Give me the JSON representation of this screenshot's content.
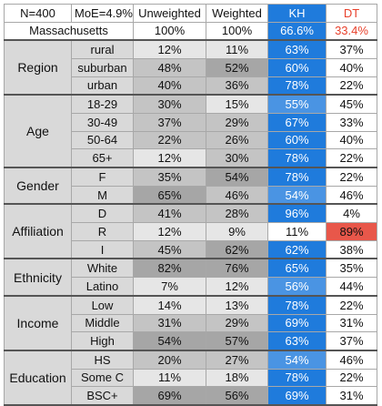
{
  "header": {
    "n": "N=400",
    "moe": "MoE=4.9%",
    "state": "Massachusetts",
    "col_unweighted": "Unweighted",
    "col_weighted": "Weighted",
    "col_kh": "KH",
    "col_dt": "DT",
    "total_unweighted": "100%",
    "total_weighted": "100%",
    "total_kh": "66.6%",
    "total_dt": "33.4%"
  },
  "colors": {
    "kh_strong": "#1f7bdc",
    "kh_mid": "#4a94e3",
    "kh_light": "#ffffff",
    "dt_light": "#ffffff",
    "dt_strong": "#e8574a",
    "grey_dark": "#a6a6a6",
    "grey_mid": "#c4c4c4",
    "grey_light": "#e6e6e6",
    "label_bg": "#d9d9d9"
  },
  "chart_data": {
    "type": "table",
    "columns": [
      "Unweighted",
      "Weighted",
      "KH",
      "DT"
    ],
    "totals": [
      "100%",
      "100%",
      "66.6%",
      "33.4%"
    ],
    "groups": [
      {
        "name": "Region",
        "rows": [
          {
            "label": "rural",
            "unweighted": "12%",
            "weighted": "11%",
            "kh": "63%",
            "dt": "37%"
          },
          {
            "label": "suburban",
            "unweighted": "48%",
            "weighted": "52%",
            "kh": "60%",
            "dt": "40%"
          },
          {
            "label": "urban",
            "unweighted": "40%",
            "weighted": "36%",
            "kh": "78%",
            "dt": "22%"
          }
        ]
      },
      {
        "name": "Age",
        "rows": [
          {
            "label": "18-29",
            "unweighted": "30%",
            "weighted": "15%",
            "kh": "55%",
            "dt": "45%"
          },
          {
            "label": "30-49",
            "unweighted": "37%",
            "weighted": "29%",
            "kh": "67%",
            "dt": "33%"
          },
          {
            "label": "50-64",
            "unweighted": "22%",
            "weighted": "26%",
            "kh": "60%",
            "dt": "40%"
          },
          {
            "label": "65+",
            "unweighted": "12%",
            "weighted": "30%",
            "kh": "78%",
            "dt": "22%"
          }
        ]
      },
      {
        "name": "Gender",
        "rows": [
          {
            "label": "F",
            "unweighted": "35%",
            "weighted": "54%",
            "kh": "78%",
            "dt": "22%"
          },
          {
            "label": "M",
            "unweighted": "65%",
            "weighted": "46%",
            "kh": "54%",
            "dt": "46%"
          }
        ]
      },
      {
        "name": "Affiliation",
        "rows": [
          {
            "label": "D",
            "unweighted": "41%",
            "weighted": "28%",
            "kh": "96%",
            "dt": "4%"
          },
          {
            "label": "R",
            "unweighted": "12%",
            "weighted": "9%",
            "kh": "11%",
            "dt": "89%"
          },
          {
            "label": "I",
            "unweighted": "45%",
            "weighted": "62%",
            "kh": "62%",
            "dt": "38%"
          }
        ]
      },
      {
        "name": "Ethnicity",
        "rows": [
          {
            "label": "White",
            "unweighted": "82%",
            "weighted": "76%",
            "kh": "65%",
            "dt": "35%"
          },
          {
            "label": "Latino",
            "unweighted": "7%",
            "weighted": "12%",
            "kh": "56%",
            "dt": "44%"
          }
        ]
      },
      {
        "name": "Income",
        "rows": [
          {
            "label": "Low",
            "unweighted": "14%",
            "weighted": "13%",
            "kh": "78%",
            "dt": "22%"
          },
          {
            "label": "Middle",
            "unweighted": "31%",
            "weighted": "29%",
            "kh": "69%",
            "dt": "31%"
          },
          {
            "label": "High",
            "unweighted": "54%",
            "weighted": "57%",
            "kh": "63%",
            "dt": "37%"
          }
        ]
      },
      {
        "name": "Education",
        "rows": [
          {
            "label": "HS",
            "unweighted": "20%",
            "weighted": "27%",
            "kh": "54%",
            "dt": "46%"
          },
          {
            "label": "Some C",
            "unweighted": "11%",
            "weighted": "18%",
            "kh": "78%",
            "dt": "22%"
          },
          {
            "label": "BSC+",
            "unweighted": "69%",
            "weighted": "56%",
            "kh": "69%",
            "dt": "31%"
          }
        ]
      }
    ]
  }
}
